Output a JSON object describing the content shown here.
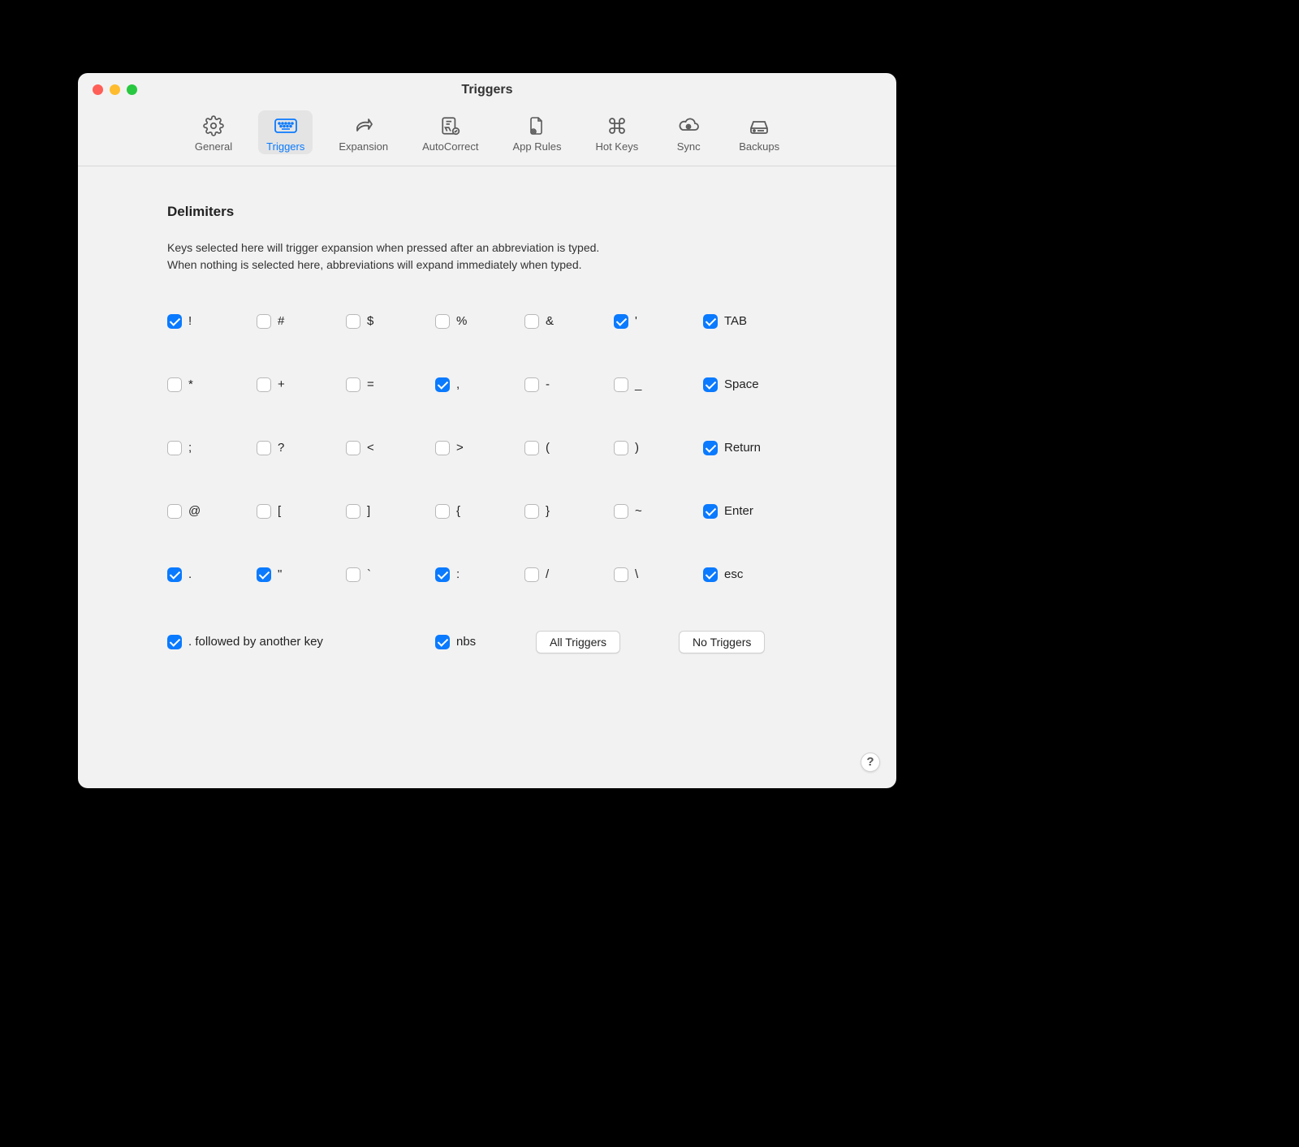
{
  "window": {
    "title": "Triggers"
  },
  "toolbar": {
    "items": [
      {
        "label": "General",
        "active": false
      },
      {
        "label": "Triggers",
        "active": true
      },
      {
        "label": "Expansion",
        "active": false
      },
      {
        "label": "AutoCorrect",
        "active": false
      },
      {
        "label": "App Rules",
        "active": false
      },
      {
        "label": "Hot Keys",
        "active": false
      },
      {
        "label": "Sync",
        "active": false
      },
      {
        "label": "Backups",
        "active": false
      }
    ]
  },
  "section": {
    "title": "Delimiters",
    "description_line1": "Keys selected here will trigger expansion when pressed after an abbreviation is typed.",
    "description_line2": "When nothing is selected here, abbreviations will expand immediately when typed."
  },
  "delimiters": [
    {
      "label": "!",
      "checked": true
    },
    {
      "label": "#",
      "checked": false
    },
    {
      "label": "$",
      "checked": false
    },
    {
      "label": "%",
      "checked": false
    },
    {
      "label": "&",
      "checked": false
    },
    {
      "label": "'",
      "checked": true
    },
    {
      "label": "TAB",
      "checked": true
    },
    {
      "label": "*",
      "checked": false
    },
    {
      "label": "+",
      "checked": false
    },
    {
      "label": "=",
      "checked": false
    },
    {
      "label": ",",
      "checked": true
    },
    {
      "label": "-",
      "checked": false
    },
    {
      "label": "_",
      "checked": false
    },
    {
      "label": "Space",
      "checked": true
    },
    {
      "label": ";",
      "checked": false
    },
    {
      "label": "?",
      "checked": false
    },
    {
      "label": "<",
      "checked": false
    },
    {
      "label": ">",
      "checked": false
    },
    {
      "label": "(",
      "checked": false
    },
    {
      "label": ")",
      "checked": false
    },
    {
      "label": "Return",
      "checked": true
    },
    {
      "label": "@",
      "checked": false
    },
    {
      "label": "[",
      "checked": false
    },
    {
      "label": "]",
      "checked": false
    },
    {
      "label": "{",
      "checked": false
    },
    {
      "label": "}",
      "checked": false
    },
    {
      "label": "~",
      "checked": false
    },
    {
      "label": "Enter",
      "checked": true
    },
    {
      "label": ".",
      "checked": true
    },
    {
      "label": "\"",
      "checked": true
    },
    {
      "label": "`",
      "checked": false
    },
    {
      "label": ":",
      "checked": true
    },
    {
      "label": "/",
      "checked": false
    },
    {
      "label": "\\",
      "checked": false
    },
    {
      "label": "esc",
      "checked": true
    }
  ],
  "bottom": {
    "period_followed": {
      "label": ". followed by another key",
      "checked": true
    },
    "nbs": {
      "label": "nbs",
      "checked": true
    },
    "all_triggers": "All Triggers",
    "no_triggers": "No Triggers"
  },
  "help_label": "?",
  "colors": {
    "accent": "#0a7aff",
    "window_bg": "#f2f2f2",
    "text": "#222",
    "secondary_text": "#5a5a5a"
  }
}
